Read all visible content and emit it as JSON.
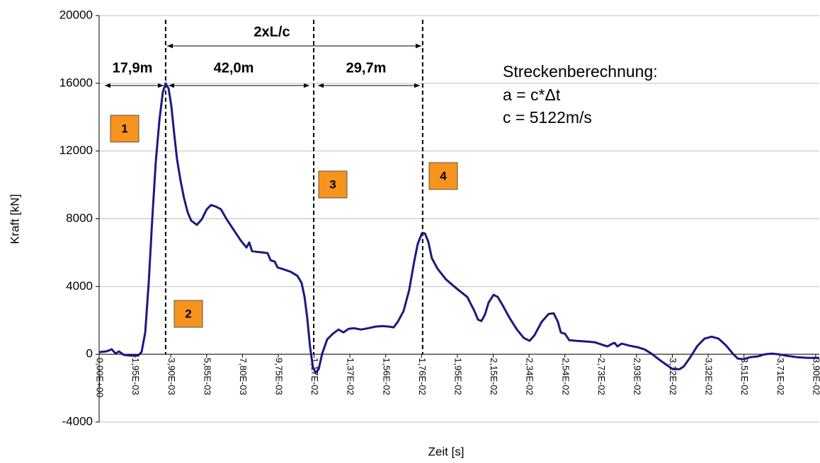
{
  "chart_data": {
    "type": "line",
    "xlabel": "Zeit [s]",
    "ylabel": "Kraft [kN]",
    "color": "#1a1a80",
    "grid": true,
    "xlim": [
      0,
      0.0392
    ],
    "ylim": [
      -4000,
      20000
    ],
    "yticks": [
      -4000,
      0,
      4000,
      8000,
      12000,
      16000,
      20000
    ],
    "xticks": [
      {
        "value": 0,
        "label": "0,00E+00"
      },
      {
        "value": 0.00195,
        "label": "1,95E-03"
      },
      {
        "value": 0.0039,
        "label": "3,90E-03"
      },
      {
        "value": 0.00585,
        "label": "5,85E-03"
      },
      {
        "value": 0.0078,
        "label": "7,80E-03"
      },
      {
        "value": 0.00975,
        "label": "9,75E-03"
      },
      {
        "value": 0.0117,
        "label": "1,17E-02"
      },
      {
        "value": 0.01365,
        "label": "1,37E-02"
      },
      {
        "value": 0.0156,
        "label": "1,56E-02"
      },
      {
        "value": 0.01755,
        "label": "1,76E-02"
      },
      {
        "value": 0.0195,
        "label": "1,95E-02"
      },
      {
        "value": 0.02145,
        "label": "2,15E-02"
      },
      {
        "value": 0.0234,
        "label": "2,34E-02"
      },
      {
        "value": 0.02535,
        "label": "2,54E-02"
      },
      {
        "value": 0.0273,
        "label": "2,73E-02"
      },
      {
        "value": 0.02925,
        "label": "2,93E-02"
      },
      {
        "value": 0.0312,
        "label": "3,12E-02"
      },
      {
        "value": 0.03315,
        "label": "3,32E-02"
      },
      {
        "value": 0.0351,
        "label": "3,51E-02"
      },
      {
        "value": 0.03705,
        "label": "3,71E-02"
      },
      {
        "value": 0.039,
        "label": "3,90E-02"
      }
    ],
    "x": [
      0,
      0.00039,
      0.00069,
      0.00089,
      0.00108,
      0.00135,
      0.00173,
      0.00212,
      0.00231,
      0.00251,
      0.0027,
      0.00289,
      0.00308,
      0.00328,
      0.00347,
      0.00362,
      0.00378,
      0.00393,
      0.00409,
      0.00424,
      0.00443,
      0.00462,
      0.00482,
      0.00501,
      0.00532,
      0.00559,
      0.00586,
      0.00609,
      0.00636,
      0.00663,
      0.00694,
      0.00732,
      0.00771,
      0.00802,
      0.00817,
      0.00832,
      0.00856,
      0.00894,
      0.00917,
      0.00933,
      0.00956,
      0.00971,
      0.00994,
      0.01041,
      0.01079,
      0.01102,
      0.01118,
      0.01133,
      0.01148,
      0.01164,
      0.01179,
      0.01195,
      0.01214,
      0.01241,
      0.01272,
      0.01303,
      0.0133,
      0.01357,
      0.01387,
      0.01426,
      0.01465,
      0.01503,
      0.01542,
      0.0158,
      0.01603,
      0.01626,
      0.01657,
      0.01688,
      0.01715,
      0.01734,
      0.01757,
      0.01773,
      0.01792,
      0.01811,
      0.01842,
      0.01888,
      0.01946,
      0.02004,
      0.02043,
      0.02062,
      0.02081,
      0.021,
      0.0212,
      0.02147,
      0.0217,
      0.02197,
      0.02235,
      0.02274,
      0.02312,
      0.02343,
      0.0237,
      0.02409,
      0.02447,
      0.02474,
      0.02497,
      0.02513,
      0.02536,
      0.02559,
      0.02601,
      0.02659,
      0.02698,
      0.02744,
      0.02767,
      0.02794,
      0.02806,
      0.02821,
      0.02844,
      0.0289,
      0.02929,
      0.02968,
      0.03006,
      0.03045,
      0.03083,
      0.03122,
      0.0316,
      0.03183,
      0.03218,
      0.03257,
      0.03295,
      0.03334,
      0.03372,
      0.03411,
      0.03449,
      0.03476,
      0.03507,
      0.03546,
      0.03584,
      0.03623,
      0.03661,
      0.037,
      0.03738,
      0.03796,
      0.03854,
      0.0392
    ],
    "values": [
      130,
      170,
      290,
      40,
      170,
      -40,
      -80,
      -80,
      130,
      1290,
      4220,
      7970,
      11310,
      13820,
      15490,
      15990,
      15690,
      14650,
      12980,
      11520,
      10270,
      9220,
      8390,
      7890,
      7640,
      7970,
      8560,
      8810,
      8720,
      8560,
      7970,
      7350,
      6720,
      6300,
      6600,
      6090,
      6050,
      6010,
      5970,
      5550,
      5470,
      5130,
      5050,
      4880,
      4630,
      4220,
      3380,
      2130,
      460,
      -790,
      -1090,
      -880,
      40,
      880,
      1210,
      1460,
      1290,
      1500,
      1540,
      1460,
      1540,
      1630,
      1670,
      1630,
      1590,
      1920,
      2550,
      3800,
      5470,
      6510,
      7140,
      7140,
      6640,
      5680,
      5050,
      4420,
      3880,
      3380,
      2550,
      2050,
      1960,
      2340,
      3050,
      3510,
      3380,
      2880,
      2130,
      1460,
      960,
      790,
      1130,
      1920,
      2380,
      2420,
      1920,
      1290,
      1210,
      830,
      790,
      750,
      710,
      540,
      460,
      630,
      670,
      460,
      630,
      500,
      420,
      290,
      40,
      -290,
      -580,
      -880,
      -880,
      -710,
      -170,
      500,
      920,
      1040,
      920,
      540,
      40,
      -250,
      -290,
      -170,
      -130,
      0,
      40,
      0,
      -80,
      -170,
      -210,
      -210
    ],
    "reference_lines": [
      0.00362,
      0.01168,
      0.01761
    ],
    "period_label": "2xL/c",
    "span_labels": [
      "17,9m",
      "42,0m",
      "29,7m"
    ],
    "note": [
      "Streckenberechnung:",
      "a = c*Δt",
      "c = 5122m/s"
    ],
    "markers": [
      "1",
      "2",
      "3",
      "4"
    ]
  }
}
